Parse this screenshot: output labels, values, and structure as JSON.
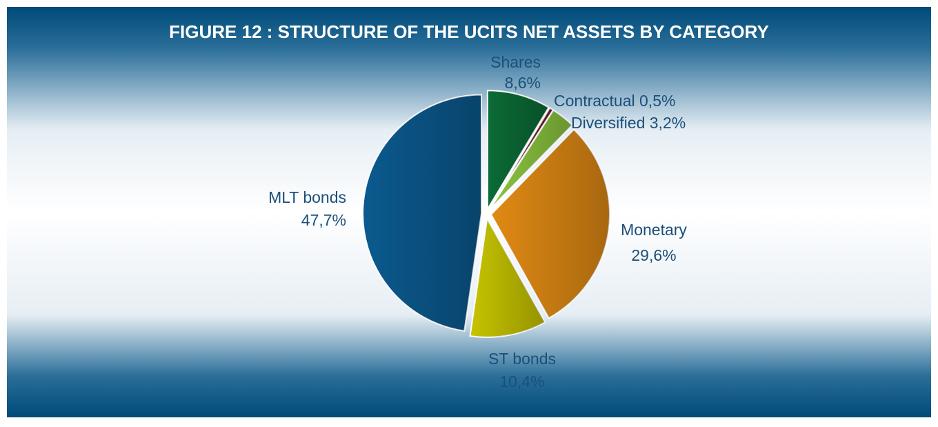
{
  "chart_data": {
    "type": "pie",
    "title": "FIGURE 12 : STRUCTURE OF THE UCITS NET ASSETS BY CATEGORY",
    "categories": [
      "Shares",
      "Contractual",
      "Diversified",
      "Monetary",
      "ST bonds",
      "MLT bonds"
    ],
    "values": [
      8.6,
      0.5,
      3.2,
      29.6,
      10.4,
      47.7
    ],
    "value_labels": [
      "8,6%",
      "0,5%",
      "3,2%",
      "29,6%",
      "10,4%",
      "47,7%"
    ],
    "colors": [
      "#0b6b36",
      "#7a1f2a",
      "#8cc63f",
      "#e08a14",
      "#c6c400",
      "#0b5a8f"
    ]
  }
}
